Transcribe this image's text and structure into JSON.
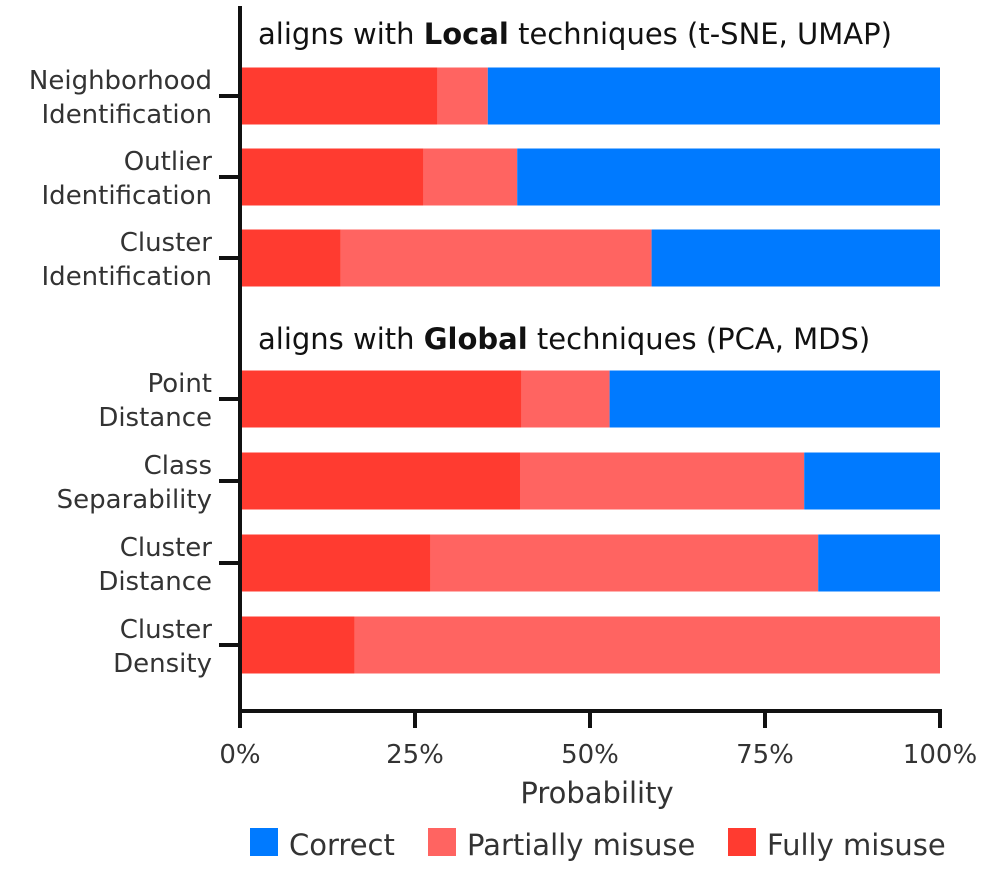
{
  "chart_data": {
    "type": "bar",
    "orientation": "horizontal",
    "stacked": true,
    "xlabel": "Probability",
    "xlim": [
      0,
      100
    ],
    "xticks": [
      "0%",
      "25%",
      "50%",
      "75%",
      "100%"
    ],
    "groups": [
      {
        "title_prefix": "aligns with ",
        "title_bold": "Local",
        "title_suffix": " techniques (t-SNE, UMAP)",
        "categories": [
          [
            "Neighborhood",
            "Identification"
          ],
          [
            "Outlier",
            "Identification"
          ],
          [
            "Cluster",
            "Identification"
          ]
        ]
      },
      {
        "title_prefix": "aligns with ",
        "title_bold": "Global",
        "title_suffix": " techniques (PCA, MDS)",
        "categories": [
          [
            "Point",
            "Distance"
          ],
          [
            "Class",
            "Separability"
          ],
          [
            "Cluster",
            "Distance"
          ],
          [
            "Cluster",
            "Density"
          ]
        ]
      }
    ],
    "series": [
      {
        "name": "Fully misuse",
        "color": "#ff3b30",
        "values": [
          28.2,
          26.2,
          14.4,
          40.2,
          40.0,
          27.2,
          16.4
        ]
      },
      {
        "name": "Partially misuse",
        "color": "#ff6461",
        "values": [
          7.2,
          13.4,
          44.4,
          12.6,
          40.6,
          55.4,
          83.6
        ]
      },
      {
        "name": "Correct",
        "color": "#007aff",
        "values": [
          64.6,
          60.4,
          41.2,
          47.2,
          19.4,
          17.4,
          0.0
        ]
      }
    ],
    "legend": {
      "position": "bottom",
      "order": [
        "Correct",
        "Partially misuse",
        "Fully misuse"
      ]
    }
  }
}
